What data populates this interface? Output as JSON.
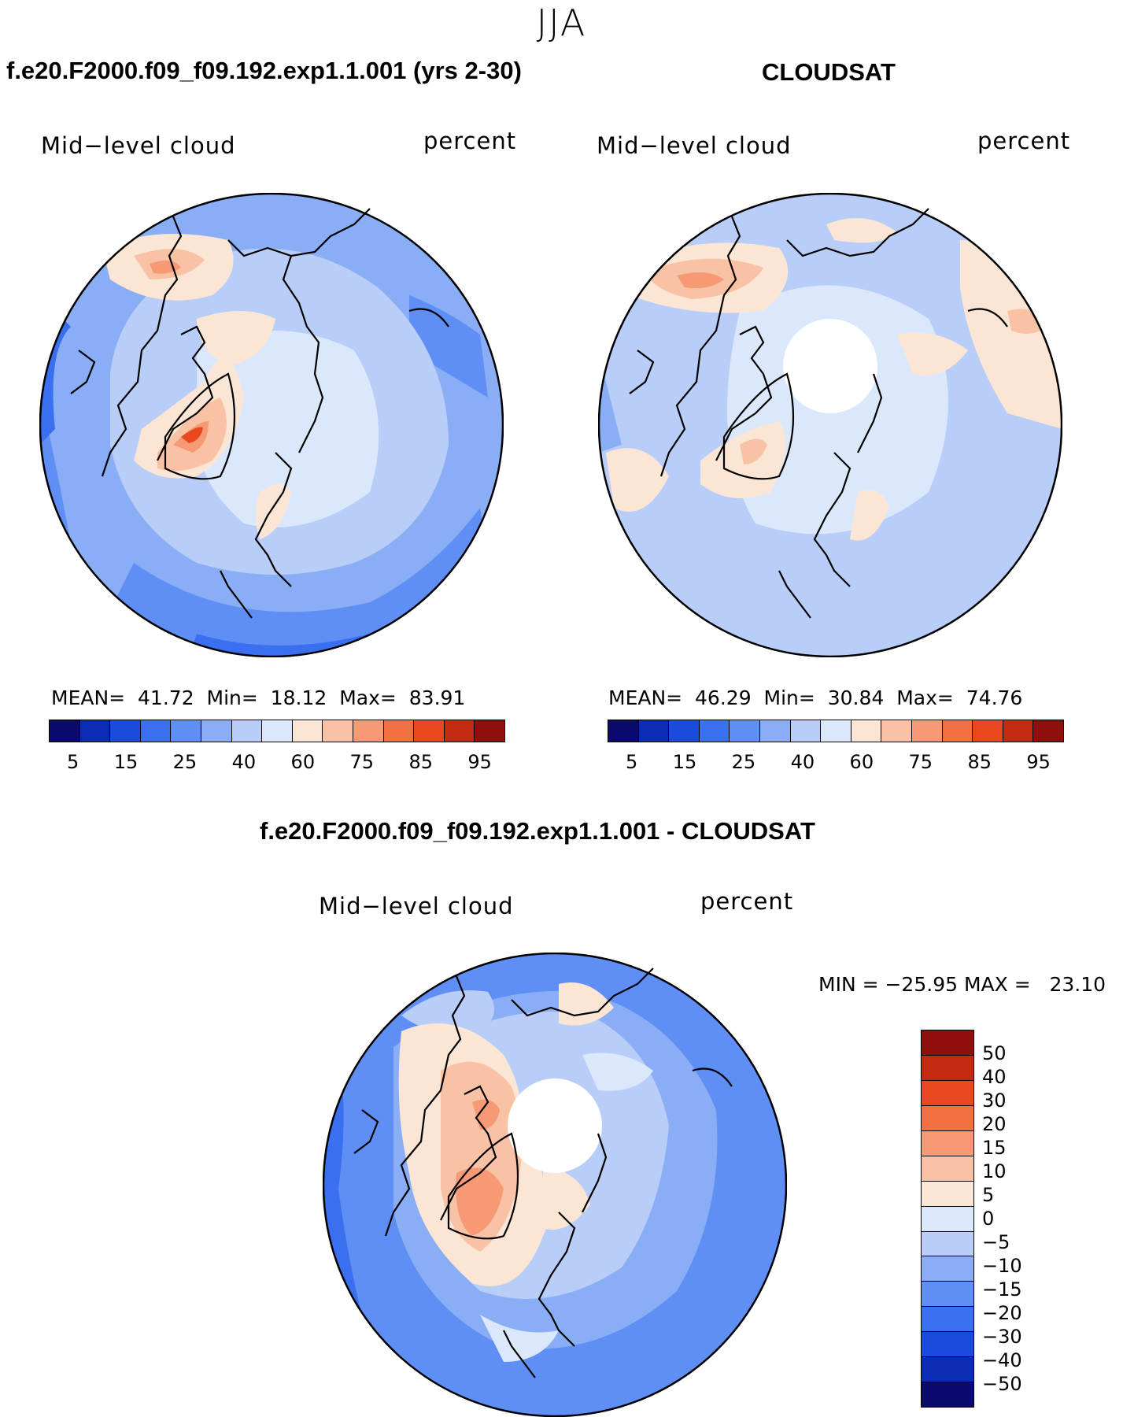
{
  "season": "JJA",
  "panels": {
    "model": {
      "title": "f.e20.F2000.f09_f09.192.exp1.1.001 (yrs 2-30)",
      "variable": "Mid−level cloud",
      "units": "percent",
      "mean_label": "MEAN=",
      "mean": "41.72",
      "min_label": "Min=",
      "min": "18.12",
      "max_label": "Max=",
      "max": "83.91"
    },
    "obs": {
      "title": "CLOUDSAT",
      "variable": "Mid−level cloud",
      "units": "percent",
      "mean_label": "MEAN=",
      "mean": "46.29",
      "min_label": "Min=",
      "min": "30.84",
      "max_label": "Max=",
      "max": "74.76"
    },
    "diff": {
      "title": "f.e20.F2000.f09_f09.192.exp1.1.001 - CLOUDSAT",
      "variable": "Mid−level cloud",
      "units": "percent",
      "minmax_text": "MIN = −25.95 MAX =   23.10"
    }
  },
  "abs_colorbar": {
    "colors": [
      "#0a0a6e",
      "#0b2cb4",
      "#1a4bdc",
      "#3a6ff0",
      "#5f8ff5",
      "#8aaef5",
      "#b8cdf7",
      "#dbe8fb",
      "#fbe6d6",
      "#f9c2a5",
      "#f69a75",
      "#f2703f",
      "#e8471f",
      "#c42a10",
      "#8f0f0a"
    ],
    "ticks": [
      "5",
      "15",
      "25",
      "40",
      "60",
      "75",
      "85",
      "95"
    ]
  },
  "diff_colorbar": {
    "colors": [
      "#8f0f0a",
      "#c42a10",
      "#e8471f",
      "#f2703f",
      "#f69a75",
      "#f9c2a5",
      "#fbe6d6",
      "#dbe8fb",
      "#b8cdf7",
      "#8aaef5",
      "#5f8ff5",
      "#3a6ff0",
      "#1a4bdc",
      "#0b2cb4",
      "#0a0a6e"
    ],
    "ticks": [
      "50",
      "40",
      "30",
      "20",
      "15",
      "10",
      "5",
      "0",
      "−5",
      "−10",
      "−15",
      "−20",
      "−30",
      "−40",
      "−50"
    ]
  }
}
